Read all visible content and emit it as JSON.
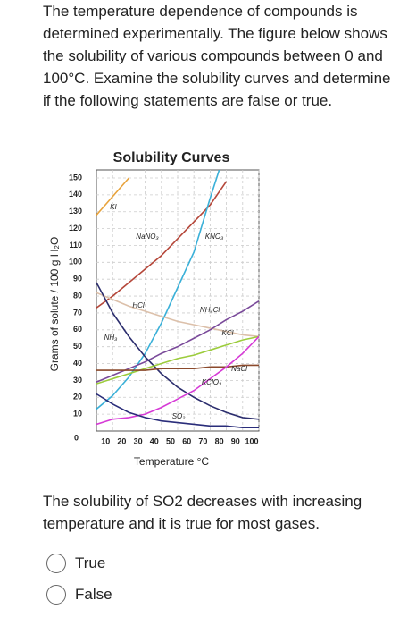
{
  "question": "The temperature dependence of compounds is determined experimentally. The figure below shows the solubility of various compounds between 0 and 100°C. Examine the solubility curves and determine if the following statements are false or true.",
  "chart_data": {
    "type": "line",
    "title": "Solubility Curves",
    "x_label": "Temperature °C",
    "y_label": "Grams of solute / 100 g H₂O",
    "x": [
      0,
      10,
      20,
      30,
      40,
      50,
      60,
      70,
      80,
      90,
      100
    ],
    "xlim": [
      0,
      100
    ],
    "ylim": [
      0,
      150
    ],
    "xticks": [
      10,
      20,
      30,
      40,
      50,
      60,
      70,
      80,
      90,
      100
    ],
    "yticks": [
      0,
      10,
      20,
      30,
      40,
      50,
      60,
      70,
      80,
      90,
      100,
      110,
      120,
      130,
      140,
      150
    ],
    "grid": true,
    "series": [
      {
        "name": "KI",
        "color": "#e8a33c",
        "values": [
          128,
          139,
          150,
          null,
          null,
          null,
          null,
          null,
          null,
          null,
          null
        ]
      },
      {
        "name": "NaNO₃",
        "color": "#b5473a",
        "values": [
          73,
          80,
          88,
          96,
          104,
          114,
          124,
          134,
          148,
          null,
          null
        ]
      },
      {
        "name": "KNO₃",
        "color": "#3ab0d8",
        "values": [
          13,
          21,
          32,
          46,
          64,
          85,
          106,
          138,
          168,
          null,
          null
        ]
      },
      {
        "name": "HCl",
        "color": "#dcc0aa",
        "values": [
          82,
          78,
          74,
          71,
          68,
          65,
          63,
          61,
          59,
          57,
          56
        ]
      },
      {
        "name": "NH₄Cl",
        "color": "#7a4a9a",
        "values": [
          29,
          33,
          37,
          41,
          46,
          50,
          55,
          60,
          66,
          71,
          77
        ]
      },
      {
        "name": "NH₃",
        "color": "#2c2e6e",
        "values": [
          88,
          70,
          56,
          44,
          34,
          26,
          20,
          15,
          11,
          8,
          7
        ]
      },
      {
        "name": "KCl",
        "color": "#9ccc3c",
        "values": [
          28,
          31,
          34,
          37,
          40,
          43,
          45,
          48,
          51,
          54,
          56
        ]
      },
      {
        "name": "NaCl",
        "color": "#8b4a2c",
        "values": [
          36,
          36,
          36,
          36,
          37,
          37,
          37,
          38,
          38,
          39,
          39
        ]
      },
      {
        "name": "KClO₃",
        "color": "#d63ad6",
        "values": [
          4,
          7,
          8,
          10,
          14,
          19,
          24,
          31,
          38,
          46,
          56
        ]
      },
      {
        "name": "SO₂",
        "color": "#2a2d7a",
        "values": [
          22,
          16,
          11,
          8,
          6,
          5,
          4,
          3,
          3,
          2,
          2
        ]
      }
    ]
  },
  "statement": "The solubility of SO2 decreases with increasing temperature and it is true for most gases.",
  "options": [
    "True",
    "False"
  ]
}
